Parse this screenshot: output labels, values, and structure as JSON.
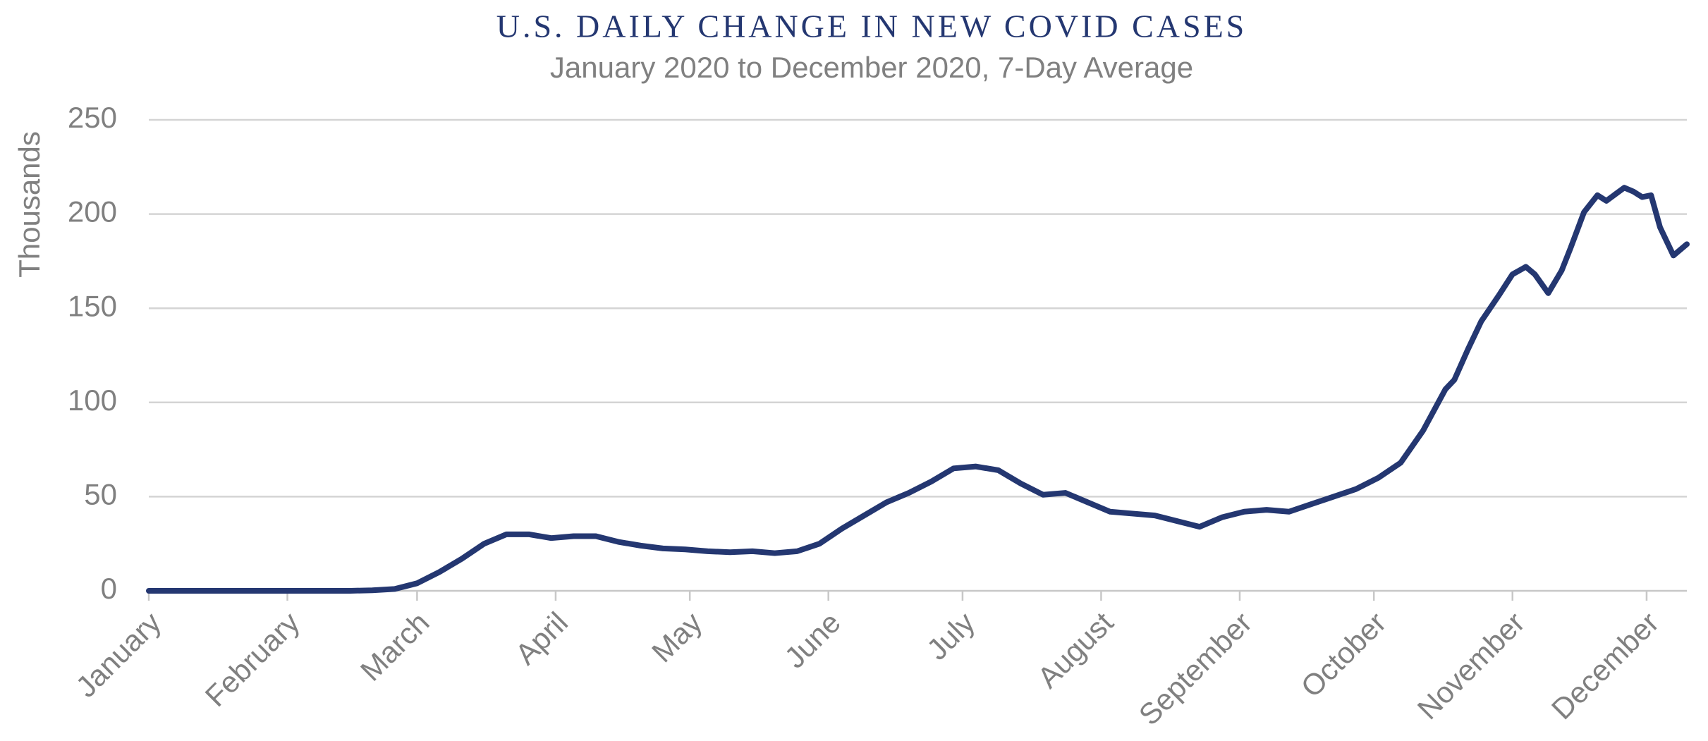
{
  "chart_data": {
    "type": "line",
    "title": "U.S. DAILY CHANGE IN NEW COVID CASES",
    "subtitle": "January 2020 to December 2020, 7-Day Average",
    "y_label": "Thousands",
    "xlim": [
      0,
      344
    ],
    "xticks": [
      {
        "value": 0,
        "label": "January"
      },
      {
        "value": 31,
        "label": "February"
      },
      {
        "value": 60,
        "label": "March"
      },
      {
        "value": 91,
        "label": "April"
      },
      {
        "value": 121,
        "label": "May"
      },
      {
        "value": 152,
        "label": "June"
      },
      {
        "value": 182,
        "label": "July"
      },
      {
        "value": 213,
        "label": "August"
      },
      {
        "value": 244,
        "label": "September"
      },
      {
        "value": 274,
        "label": "October"
      },
      {
        "value": 305,
        "label": "November"
      },
      {
        "value": 335,
        "label": "December"
      }
    ],
    "ylim": [
      0,
      250
    ],
    "yticks": [
      0,
      50,
      100,
      150,
      200,
      250
    ],
    "grid": true,
    "x": [
      0,
      45,
      50,
      55,
      60,
      65,
      70,
      75,
      80,
      85,
      90,
      95,
      100,
      105,
      110,
      115,
      120,
      125,
      130,
      135,
      140,
      145,
      150,
      155,
      160,
      165,
      170,
      175,
      180,
      185,
      190,
      195,
      200,
      205,
      210,
      215,
      220,
      225,
      230,
      235,
      240,
      245,
      250,
      255,
      260,
      265,
      270,
      275,
      280,
      285,
      290,
      292,
      295,
      298,
      302,
      305,
      308,
      310,
      313,
      316,
      318,
      321,
      324,
      326,
      330,
      332,
      334,
      336,
      338,
      341,
      344
    ],
    "series": [
      {
        "name": "7-Day Average",
        "color": "#243771",
        "values": [
          0,
          0,
          0.3,
          1,
          4,
          10,
          17,
          25,
          30,
          30,
          28,
          29,
          29,
          26,
          24,
          22.5,
          22,
          21,
          20.5,
          21,
          20,
          21,
          25,
          33,
          40,
          47,
          52,
          58,
          65,
          66,
          64,
          57,
          51,
          52,
          47,
          42,
          41,
          40,
          37,
          34,
          39,
          42,
          43,
          42,
          46,
          50,
          54,
          60,
          68,
          85,
          107,
          112,
          128,
          143,
          157,
          168,
          172,
          168,
          158,
          170,
          182,
          201,
          210,
          207,
          214,
          212,
          209,
          210,
          193,
          178,
          184
        ]
      }
    ]
  }
}
